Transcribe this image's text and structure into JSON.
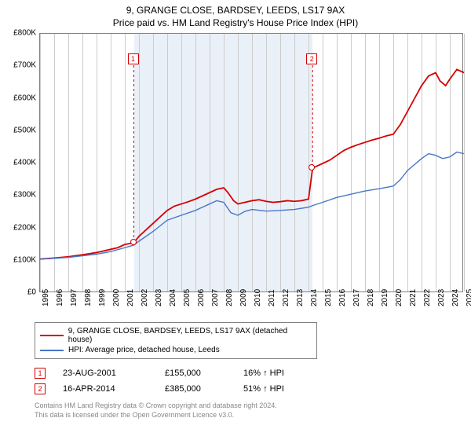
{
  "title": "9, GRANGE CLOSE, BARDSEY, LEEDS, LS17 9AX",
  "subtitle": "Price paid vs. HM Land Registry's House Price Index (HPI)",
  "chart": {
    "type": "line",
    "background_color": "#ffffff",
    "grid_color": "#cccccc",
    "shade_color": "#eaf0f8",
    "ylim": [
      0,
      800000
    ],
    "ytick_step": 100000,
    "yticks": [
      "£0",
      "£100K",
      "£200K",
      "£300K",
      "£400K",
      "£500K",
      "£600K",
      "£700K",
      "£800K"
    ],
    "xlim": [
      1995,
      2025
    ],
    "xticks": [
      1995,
      1996,
      1997,
      1998,
      1999,
      2000,
      2001,
      2002,
      2003,
      2004,
      2005,
      2006,
      2007,
      2008,
      2009,
      2010,
      2011,
      2012,
      2013,
      2014,
      2015,
      2016,
      2017,
      2018,
      2019,
      2020,
      2021,
      2022,
      2023,
      2024,
      2025
    ],
    "shade_from": 2001.64,
    "shade_to": 2014.29,
    "series": [
      {
        "name": "9, GRANGE CLOSE, BARDSEY, LEEDS, LS17 9AX (detached house)",
        "color": "#d40000",
        "line_width": 1.8,
        "data": [
          [
            1995,
            105
          ],
          [
            1996,
            108
          ],
          [
            1997,
            112
          ],
          [
            1998,
            118
          ],
          [
            1999,
            125
          ],
          [
            2000,
            135
          ],
          [
            2000.5,
            140
          ],
          [
            2001,
            150
          ],
          [
            2001.64,
            155
          ],
          [
            2002,
            175
          ],
          [
            2002.5,
            195
          ],
          [
            2003,
            215
          ],
          [
            2003.5,
            235
          ],
          [
            2004,
            255
          ],
          [
            2004.5,
            268
          ],
          [
            2005,
            275
          ],
          [
            2005.5,
            282
          ],
          [
            2006,
            290
          ],
          [
            2006.5,
            300
          ],
          [
            2007,
            310
          ],
          [
            2007.5,
            320
          ],
          [
            2008,
            325
          ],
          [
            2008.3,
            310
          ],
          [
            2008.7,
            285
          ],
          [
            2009,
            275
          ],
          [
            2009.5,
            280
          ],
          [
            2010,
            285
          ],
          [
            2010.5,
            288
          ],
          [
            2011,
            283
          ],
          [
            2011.5,
            280
          ],
          [
            2012,
            282
          ],
          [
            2012.5,
            285
          ],
          [
            2013,
            283
          ],
          [
            2013.5,
            285
          ],
          [
            2014,
            290
          ],
          [
            2014.29,
            385
          ],
          [
            2014.5,
            390
          ],
          [
            2015,
            400
          ],
          [
            2015.5,
            410
          ],
          [
            2016,
            425
          ],
          [
            2016.5,
            440
          ],
          [
            2017,
            450
          ],
          [
            2017.5,
            458
          ],
          [
            2018,
            465
          ],
          [
            2018.5,
            472
          ],
          [
            2019,
            478
          ],
          [
            2019.5,
            485
          ],
          [
            2020,
            490
          ],
          [
            2020.5,
            520
          ],
          [
            2021,
            560
          ],
          [
            2021.5,
            600
          ],
          [
            2022,
            640
          ],
          [
            2022.5,
            670
          ],
          [
            2023,
            680
          ],
          [
            2023.3,
            655
          ],
          [
            2023.7,
            640
          ],
          [
            2024,
            660
          ],
          [
            2024.5,
            690
          ],
          [
            2025,
            680
          ]
        ]
      },
      {
        "name": "HPI: Average price, detached house, Leeds",
        "color": "#4a76c7",
        "line_width": 1.4,
        "data": [
          [
            1995,
            105
          ],
          [
            1996,
            107
          ],
          [
            1997,
            110
          ],
          [
            1998,
            115
          ],
          [
            1999,
            120
          ],
          [
            2000,
            128
          ],
          [
            2001,
            140
          ],
          [
            2001.64,
            148
          ],
          [
            2002,
            160
          ],
          [
            2003,
            190
          ],
          [
            2004,
            225
          ],
          [
            2005,
            240
          ],
          [
            2006,
            255
          ],
          [
            2007,
            275
          ],
          [
            2007.5,
            285
          ],
          [
            2008,
            280
          ],
          [
            2008.5,
            248
          ],
          [
            2009,
            240
          ],
          [
            2009.5,
            252
          ],
          [
            2010,
            258
          ],
          [
            2011,
            253
          ],
          [
            2012,
            255
          ],
          [
            2013,
            258
          ],
          [
            2014,
            265
          ],
          [
            2014.29,
            270
          ],
          [
            2015,
            280
          ],
          [
            2016,
            295
          ],
          [
            2017,
            305
          ],
          [
            2018,
            315
          ],
          [
            2019,
            322
          ],
          [
            2020,
            330
          ],
          [
            2020.5,
            350
          ],
          [
            2021,
            378
          ],
          [
            2022,
            415
          ],
          [
            2022.5,
            430
          ],
          [
            2023,
            425
          ],
          [
            2023.5,
            415
          ],
          [
            2024,
            420
          ],
          [
            2024.5,
            435
          ],
          [
            2025,
            430
          ]
        ]
      }
    ],
    "markers": [
      {
        "idx": "1",
        "x": 2001.64,
        "y_box": 720,
        "y_dot": 155,
        "color": "#d40000"
      },
      {
        "idx": "2",
        "x": 2014.29,
        "y_box": 720,
        "y_dot": 385,
        "color": "#d40000"
      }
    ]
  },
  "legend": {
    "items": [
      {
        "label": "9, GRANGE CLOSE, BARDSEY, LEEDS, LS17 9AX (detached house)",
        "color": "#d40000"
      },
      {
        "label": "HPI: Average price, detached house, Leeds",
        "color": "#4a76c7"
      }
    ]
  },
  "sales": [
    {
      "idx": "1",
      "date": "23-AUG-2001",
      "price": "£155,000",
      "hpi": "16% ↑ HPI",
      "color": "#d40000"
    },
    {
      "idx": "2",
      "date": "16-APR-2014",
      "price": "£385,000",
      "hpi": "51% ↑ HPI",
      "color": "#d40000"
    }
  ],
  "footer": {
    "line1": "Contains HM Land Registry data © Crown copyright and database right 2024.",
    "line2": "This data is licensed under the Open Government Licence v3.0."
  }
}
